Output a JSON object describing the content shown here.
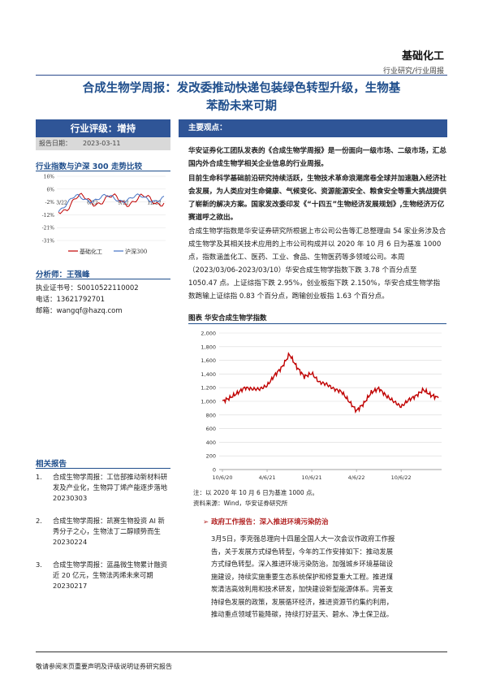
{
  "header": {
    "industry": "基础化工",
    "subtitle": "行业研究/行业周报"
  },
  "title": {
    "line1": "合成生物学周报：发改委推动快递包装绿色转型升级，生物基",
    "line2": "苯酚未来可期"
  },
  "left": {
    "rating": "行业评级：增持",
    "report_date_label": "报告日期：",
    "report_date": "2023-03-11",
    "chart_heading": "行业指数与沪深 300 走势比较",
    "small_chart": {
      "y_ticks": [
        "16%",
        "6%",
        "-2%",
        "-12%",
        "-21%",
        "-31%"
      ],
      "x_ticks": [
        "3/22",
        "6/22",
        "9/22",
        "12/22"
      ],
      "legend": [
        "基础化工",
        "沪深300"
      ],
      "colors": [
        "#c00000",
        "#4472c4"
      ]
    },
    "analyst_heading": "分析师：王强峰",
    "analyst": {
      "cert": "执业证书号：S0010522110002",
      "phone": "电话：13621792701",
      "email": "邮箱：wangqf@hazq.com"
    },
    "related_heading": "相关报告",
    "related": [
      {
        "num": "1.",
        "text": "合成生物学周报：工信部推动新材料研发及产业化，生物异丁烯产能逐步落地 20230303"
      },
      {
        "num": "2.",
        "text": "合成生物学周报：凯赛生物投资 AI 新秀分子之心，生物法丁二醇顺势而生 20230224"
      },
      {
        "num": "3.",
        "text": "合成生物学周报：蓝晶微生物累计融资近 20 亿元，生物法丙烯未来可期 20230217"
      }
    ]
  },
  "main": {
    "heading": "主要观点：",
    "p1": "华安证券化工团队发表的《合成生物学周报》是一份面向一级市场、二级市场，汇总国内外合成生物学相关企业信息的行业周报。",
    "p2": "目前生命科学基础前沿研究持续活跃，生物技术革命浪潮席卷全球并加速融入经济社会发展，为人类应对生命健康、气候变化、资源能源安全、粮食安全等重大挑战提供了崭新的解决方案。国家发改委印发《“十四五”生物经济发展规划》,生物经济万亿赛道呼之欲出。",
    "p3": "合成生物学指数是华安证券研究所根据上市公司公告等汇总整理由 54 家业务涉及合成生物学及其相关技术应用的上市公司构成并以 2020 年 10 月 6 日为基准 1000 点，指数涵盖化工、医药、工业、食品、生物医药等多领域公司。本周（2023/03/06-2023/03/10）华安合成生物学指数下跌 3.78 个百分点至 1050.47 点。上证综指下跌 2.95%，创业板指下跌 2.150%，华安合成生物学指数跑输上证综指 0.83 个百分点，跑输创业板指 1.63 个百分点。",
    "figure_title": "图表 华安合成生物学指数",
    "figure_note": "注：以 2020 年 10 月 6 日为基准 1000 点。",
    "figure_source": "资料来源：Wind，华安证券研究所",
    "policy_title": "➢ 政府工作报告：深入推进环境污染防治",
    "policy_text": "3月5日，李克强总理向十四届全国人大一次会议作政府工作报告，关于发展方式绿色转型，今年的工作安排如下：推动发展方式绿色转型。深入推进环境污染防治。加强城乡环境基础设施建设，持续实施重要生态系统保护和修复重大工程。推进煤炭清洁高效利用和技术研发，加快建设新型能源体系。完善支持绿色发展的政策，发展循环经济，推进资源节约集约利用，推动重点领域节能降碳，持续打好蓝天、碧水、净土保卫战。"
  },
  "chart_data": {
    "type": "line",
    "title": "",
    "xlabel": "",
    "ylabel": "",
    "ylim": [
      0,
      2000
    ],
    "y_ticks": [
      "0",
      "200",
      "400",
      "600",
      "800",
      "1,000",
      "1,200",
      "1,400",
      "1,600",
      "1,800",
      "2,000"
    ],
    "x_ticks": [
      "10/6/20",
      "4/6/21",
      "10/6/21",
      "4/6/22",
      "10/6/22"
    ],
    "series": [
      {
        "name": "",
        "color": "#c00000",
        "x": [
          "10/6/20",
          "11/6/20",
          "12/6/20",
          "1/6/21",
          "2/6/21",
          "3/6/21",
          "4/6/21",
          "5/6/21",
          "6/6/21",
          "7/6/21",
          "8/6/21",
          "9/6/21",
          "10/6/21",
          "11/6/21",
          "12/6/21",
          "1/6/22",
          "2/6/22",
          "3/6/22",
          "4/6/22",
          "5/6/22",
          "6/6/22",
          "7/6/22",
          "8/6/22",
          "9/6/22",
          "10/6/22",
          "11/6/22",
          "12/6/22",
          "1/6/23",
          "2/6/23",
          "3/10/23"
        ],
        "values": [
          1000,
          1050,
          1120,
          1200,
          1180,
          1180,
          1230,
          1380,
          1500,
          1690,
          1500,
          1360,
          1410,
          1280,
          1250,
          1180,
          1140,
          1000,
          860,
          970,
          1130,
          1190,
          1080,
          1000,
          920,
          1020,
          1080,
          1170,
          1090,
          1050
        ]
      }
    ]
  },
  "footer": "敬请参阅末页重要声明及评级说明证券研究报告"
}
